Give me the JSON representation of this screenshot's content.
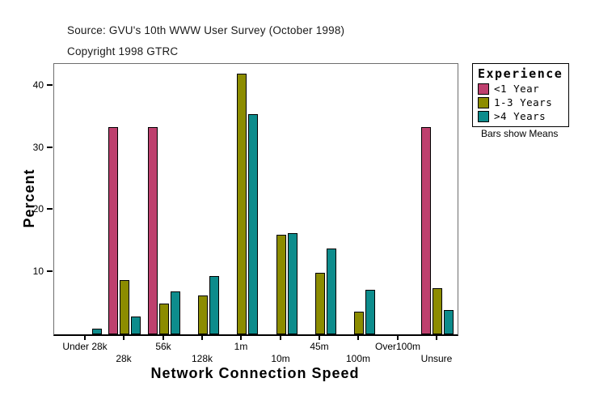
{
  "header": {
    "source": "Source: GVU's 10th WWW User Survey (October 1998)",
    "copyright": "Copyright 1998 GTRC"
  },
  "legend": {
    "title": "Experience",
    "note": "Bars show Means",
    "items": [
      {
        "label": "<1 Year",
        "color": "#BE406E"
      },
      {
        "label": "1-3 Years",
        "color": "#8C8C00"
      },
      {
        "label": ">4 Years",
        "color": "#0D8C8C"
      }
    ]
  },
  "chart_data": {
    "type": "bar",
    "title": "Source: GVU's 10th WWW User Survey (October 1998)",
    "subtitle": "Copyright 1998 GTRC",
    "xlabel": "Network Connection Speed",
    "ylabel": "Percent",
    "categories": [
      "Under 28k",
      "28k",
      "56k",
      "128k",
      "1m",
      "10m",
      "45m",
      "100m",
      "Over100m",
      "Unsure"
    ],
    "series": [
      {
        "name": "<1 Year",
        "color": "#BE406E",
        "values": [
          0,
          33.3,
          33.3,
          0,
          0,
          0,
          0,
          0,
          0,
          33.3
        ]
      },
      {
        "name": "1-3 Years",
        "color": "#8C8C00",
        "values": [
          0,
          8.7,
          4.9,
          6.2,
          42.0,
          16.0,
          9.9,
          3.6,
          0,
          7.4
        ]
      },
      {
        "name": ">4 Years",
        "color": "#0D8C8C",
        "values": [
          0.9,
          2.9,
          6.9,
          9.4,
          35.4,
          16.3,
          13.8,
          7.1,
          0,
          3.9
        ]
      }
    ],
    "y_ticks": [
      10,
      20,
      30,
      40
    ],
    "ylim": [
      0,
      43.5
    ],
    "grid": false,
    "legend_position": "right",
    "legend_title": "Experience",
    "annotation": "Bars show Means"
  }
}
